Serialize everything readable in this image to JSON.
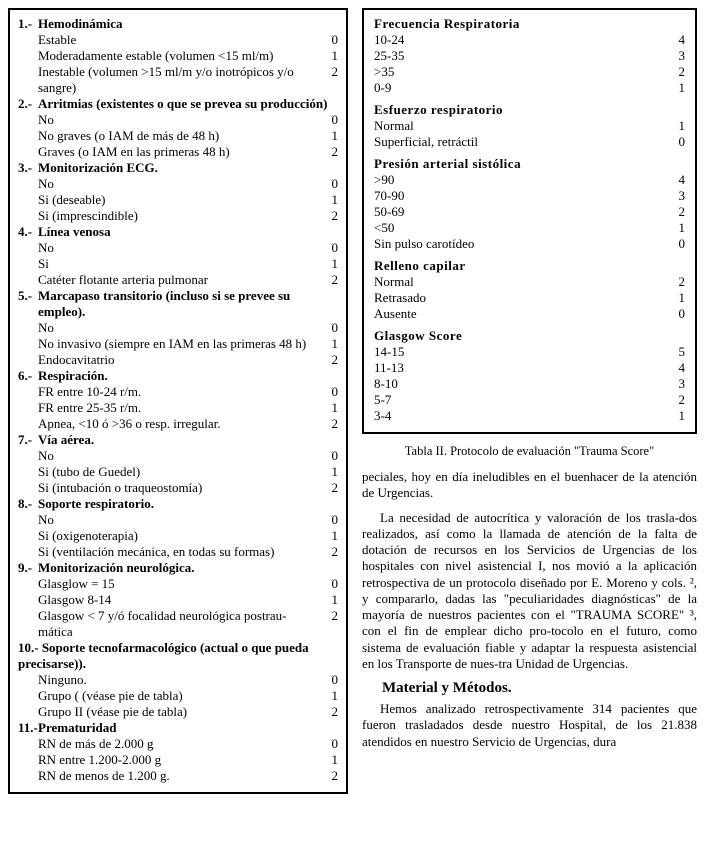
{
  "left": {
    "sections": [
      {
        "num": "1.-",
        "title": "Hemodinámica",
        "items": [
          {
            "label": "Estable",
            "score": "0"
          },
          {
            "label": "Moderadamente estable (volumen <15 ml/m)",
            "score": "1"
          },
          {
            "label": "Inestable (volumen >15 ml/m y/o inotrópicos y/o sangre)",
            "score": "2"
          }
        ]
      },
      {
        "num": "2.-",
        "title": "Arritmias (existentes o que se prevea su producción)",
        "items": [
          {
            "label": "No",
            "score": "0"
          },
          {
            "label": "No graves (o IAM de más de 48 h)",
            "score": "1"
          },
          {
            "label": "Graves (o IAM en las primeras 48 h)",
            "score": "2"
          }
        ]
      },
      {
        "num": "3.-",
        "title": "Monitorización ECG.",
        "items": [
          {
            "label": "No",
            "score": "0"
          },
          {
            "label": "Si (deseable)",
            "score": "1"
          },
          {
            "label": "Si (imprescindible)",
            "score": "2"
          }
        ]
      },
      {
        "num": "4.-",
        "title": "Línea venosa",
        "items": [
          {
            "label": "No",
            "score": "0"
          },
          {
            "label": "Si",
            "score": "1"
          },
          {
            "label": "Catéter flotante arteria pulmonar",
            "score": "2"
          }
        ]
      },
      {
        "num": "5.-",
        "title": "Marcapaso transitorio (incluso si se prevee su empleo).",
        "items": [
          {
            "label": "No",
            "score": "0"
          },
          {
            "label": "No invasivo (siempre en IAM en las primeras 48 h)",
            "score": "1"
          },
          {
            "label": "Endocavitatrio",
            "score": "2"
          }
        ]
      },
      {
        "num": "6.-",
        "title": "Respiración.",
        "items": [
          {
            "label": "FR entre 10-24 r/m.",
            "score": "0"
          },
          {
            "label": "FR entre 25-35 r/m.",
            "score": "1"
          },
          {
            "label": "Apnea, <10 ó >36 o resp. irregular.",
            "score": "2"
          }
        ]
      },
      {
        "num": "7.-",
        "title": "Vía aérea.",
        "items": [
          {
            "label": "No",
            "score": "0"
          },
          {
            "label": "Si (tubo de Guedel)",
            "score": "1"
          },
          {
            "label": "Si (intubación o traqueostomía)",
            "score": "2"
          }
        ]
      },
      {
        "num": "8.-",
        "title": "Soporte respiratorio.",
        "items": [
          {
            "label": "No",
            "score": "0"
          },
          {
            "label": "Si (oxigenoterapia)",
            "score": "1"
          },
          {
            "label": "Si (ventilación mecánica, en todas su formas)",
            "score": "2"
          }
        ]
      },
      {
        "num": "9.-",
        "title": "Monitorización neurológica.",
        "items": [
          {
            "label": "Glasglow = 15",
            "score": "0"
          },
          {
            "label": "Glasgow 8-14",
            "score": "1"
          },
          {
            "label": "Glasgow < 7 y/ó focalidad neurológica postrau-mática",
            "score": "2"
          }
        ]
      },
      {
        "num": "10.-",
        "title": "Soporte tecnofarmacológico (actual o que pueda precisarse)).",
        "title_noindent": true,
        "items": [
          {
            "label": "Ninguno.",
            "score": "0"
          },
          {
            "label": "Grupo ( (véase pie de tabla)",
            "score": "1"
          },
          {
            "label": "Grupo II (véase pie de tabla)",
            "score": "2"
          }
        ]
      },
      {
        "num": "11.-",
        "title": "Prematuridad",
        "items": [
          {
            "label": "RN de más de 2.000 g",
            "score": "0"
          },
          {
            "label": "RN entre 1.200-2.000 g",
            "score": "1"
          },
          {
            "label": "RN de menos de 1.200 g.",
            "score": "2"
          }
        ]
      }
    ]
  },
  "right_box": {
    "groups": [
      {
        "title": "Frecuencia Respiratoria",
        "items": [
          {
            "label": "10-24",
            "score": "4"
          },
          {
            "label": "25-35",
            "score": "3"
          },
          {
            "label": ">35",
            "score": "2"
          },
          {
            "label": "0-9",
            "score": "1"
          }
        ]
      },
      {
        "title": "Esfuerzo respiratorio",
        "items": [
          {
            "label": "Normal",
            "score": "1"
          },
          {
            "label": "Superficial, retráctil",
            "score": "0"
          }
        ]
      },
      {
        "title": "Presión arterial sistólica",
        "items": [
          {
            "label": ">90",
            "score": "4"
          },
          {
            "label": "70-90",
            "score": "3"
          },
          {
            "label": "50-69",
            "score": "2"
          },
          {
            "label": "<50",
            "score": "1"
          },
          {
            "label": "Sin pulso carotídeo",
            "score": "0"
          }
        ]
      },
      {
        "title": "Relleno capilar",
        "items": [
          {
            "label": "Normal",
            "score": "2"
          },
          {
            "label": "Retrasado",
            "score": "1"
          },
          {
            "label": "Ausente",
            "score": "0"
          }
        ]
      },
      {
        "title": "Glasgow Score",
        "items": [
          {
            "label": "14-15",
            "score": "5"
          },
          {
            "label": "11-13",
            "score": "4"
          },
          {
            "label": "8-10",
            "score": "3"
          },
          {
            "label": "5-7",
            "score": "2"
          },
          {
            "label": "3-4",
            "score": "1"
          }
        ]
      }
    ]
  },
  "caption": "Tabla II. Protocolo de evaluación \"Trauma Score\"",
  "para1": "peciales, hoy en día ineludibles en el buenhacer de la atención de Urgencias.",
  "para2": "La necesidad de autocrítica y valoración de los trasla-dos realizados, así como la llamada de atención de la falta de dotación de recursos en los Servicios de Urgencias de los hospitales con nivel asistencial I, nos movió a la aplicación retrospectiva de un protocolo diseñado por E. Moreno y cols. ², y compararlo, dadas las \"peculiaridades diagnósticas\" de la mayoría de nuestros pacientes con el \"TRAUMA SCORE\" ³, con el fin de emplear dicho pro-tocolo en el futuro, como sistema de evaluación fiable y adaptar la respuesta asistencial en los Transporte de nues-tra Unidad de Urgencias.",
  "methods_heading": "Material y Métodos.",
  "para3": "Hemos analizado retrospectivamente 314 pacientes que fueron trasladados desde nuestro Hospital, de los 21.838 atendidos en nuestro Servicio de Urgencias, dura"
}
